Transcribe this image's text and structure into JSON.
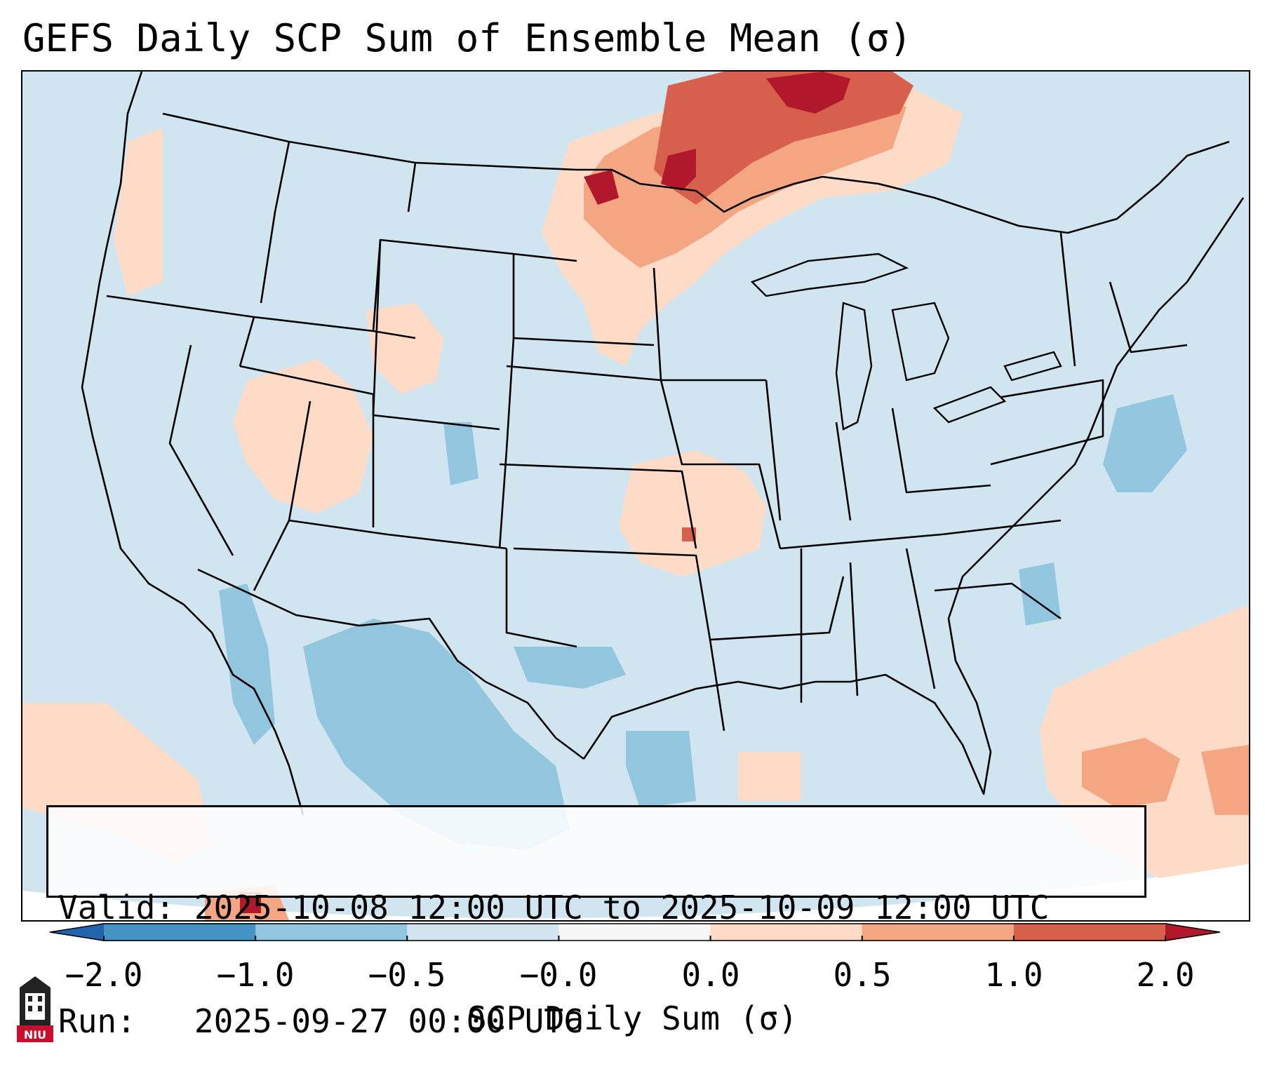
{
  "title": "GEFS Daily SCP Sum of Ensemble Mean (σ)",
  "info": {
    "valid_label": "Valid:",
    "valid_value": "2025-10-08 12:00 UTC to 2025-10-09 12:00 UTC",
    "run_label": "Run:",
    "run_value": "2025-09-27 00:00 UTC"
  },
  "colorbar": {
    "label": "SCP Daily Sum (σ)",
    "ticks": [
      "−2.0",
      "−1.0",
      "−0.5",
      "−0.0",
      "0.0",
      "0.5",
      "1.0",
      "2.0"
    ],
    "segment_colors": [
      "#4393c3",
      "#92c5de",
      "#d1e5f0",
      "#f7f7f7",
      "#fddbc7",
      "#f4a582",
      "#d6604d"
    ],
    "under_color": "#2166ac",
    "over_color": "#b2182b"
  },
  "map": {
    "region": "Contiguous United States",
    "background_color": "#d1e5f0",
    "outline_color": "#000000"
  },
  "logo": {
    "text": "NIU",
    "color": "#c8102e"
  }
}
